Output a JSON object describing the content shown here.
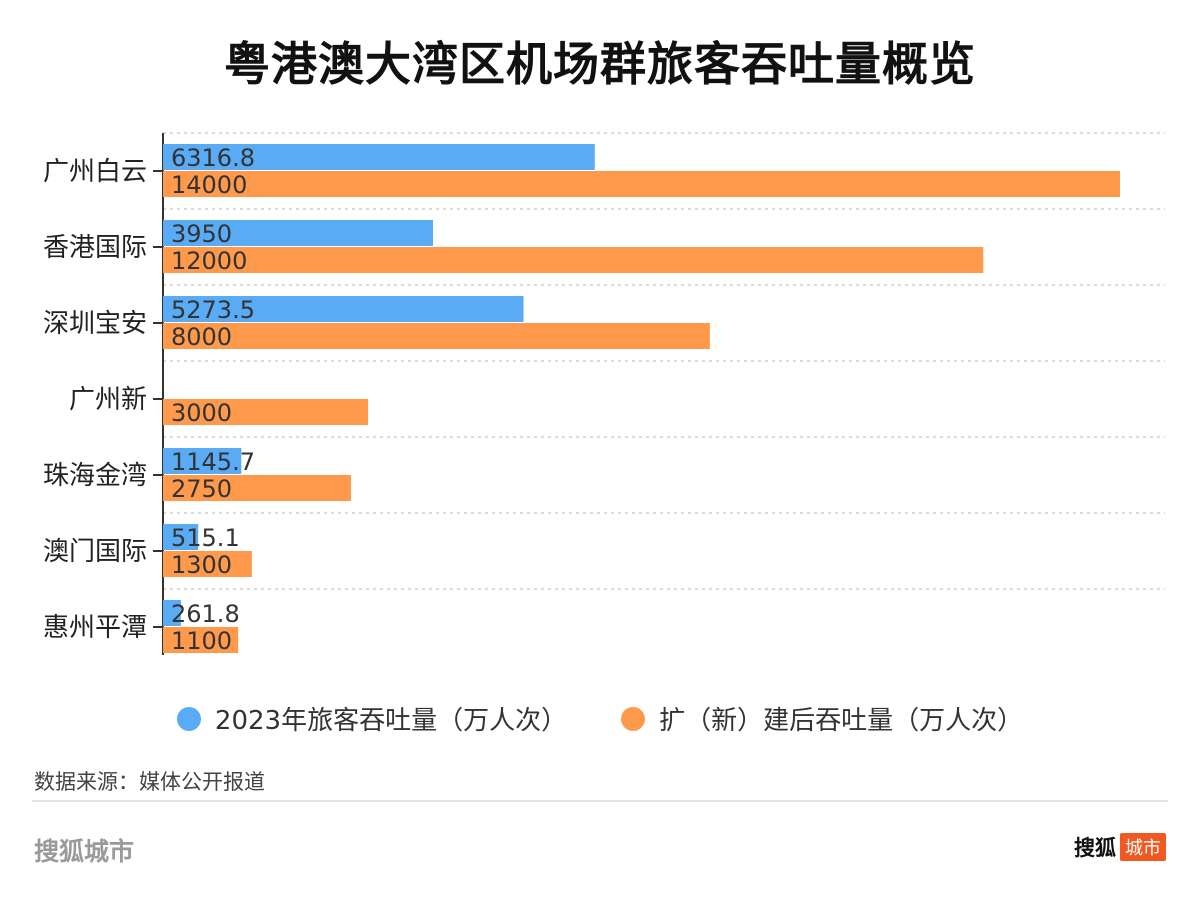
{
  "chart_data": {
    "type": "bar",
    "orientation": "horizontal",
    "title": "粤港澳大湾区机场群旅客吞吐量概览",
    "categories": [
      "广州白云",
      "香港国际",
      "深圳宝安",
      "广州新",
      "珠海金湾",
      "澳门国际",
      "惠州平潭"
    ],
    "series": [
      {
        "name": "2023年旅客吞吐量（万人次）",
        "color": "#5aabf5",
        "values": [
          6316.8,
          3950,
          5273.5,
          null,
          1145.7,
          515.1,
          261.8
        ]
      },
      {
        "name": "扩（新）建后吞吐量（万人次）",
        "color": "#ff9a4d",
        "values": [
          14000,
          12000,
          8000,
          3000,
          2750,
          1300,
          1100
        ]
      }
    ],
    "xlim": [
      0,
      14000
    ],
    "grid": true,
    "legend_position": "bottom"
  },
  "source": "数据来源：媒体公开报道",
  "footer": {
    "brand_left": "搜狐城市",
    "brand_right_text": "搜狐",
    "brand_right_badge": "城市"
  }
}
